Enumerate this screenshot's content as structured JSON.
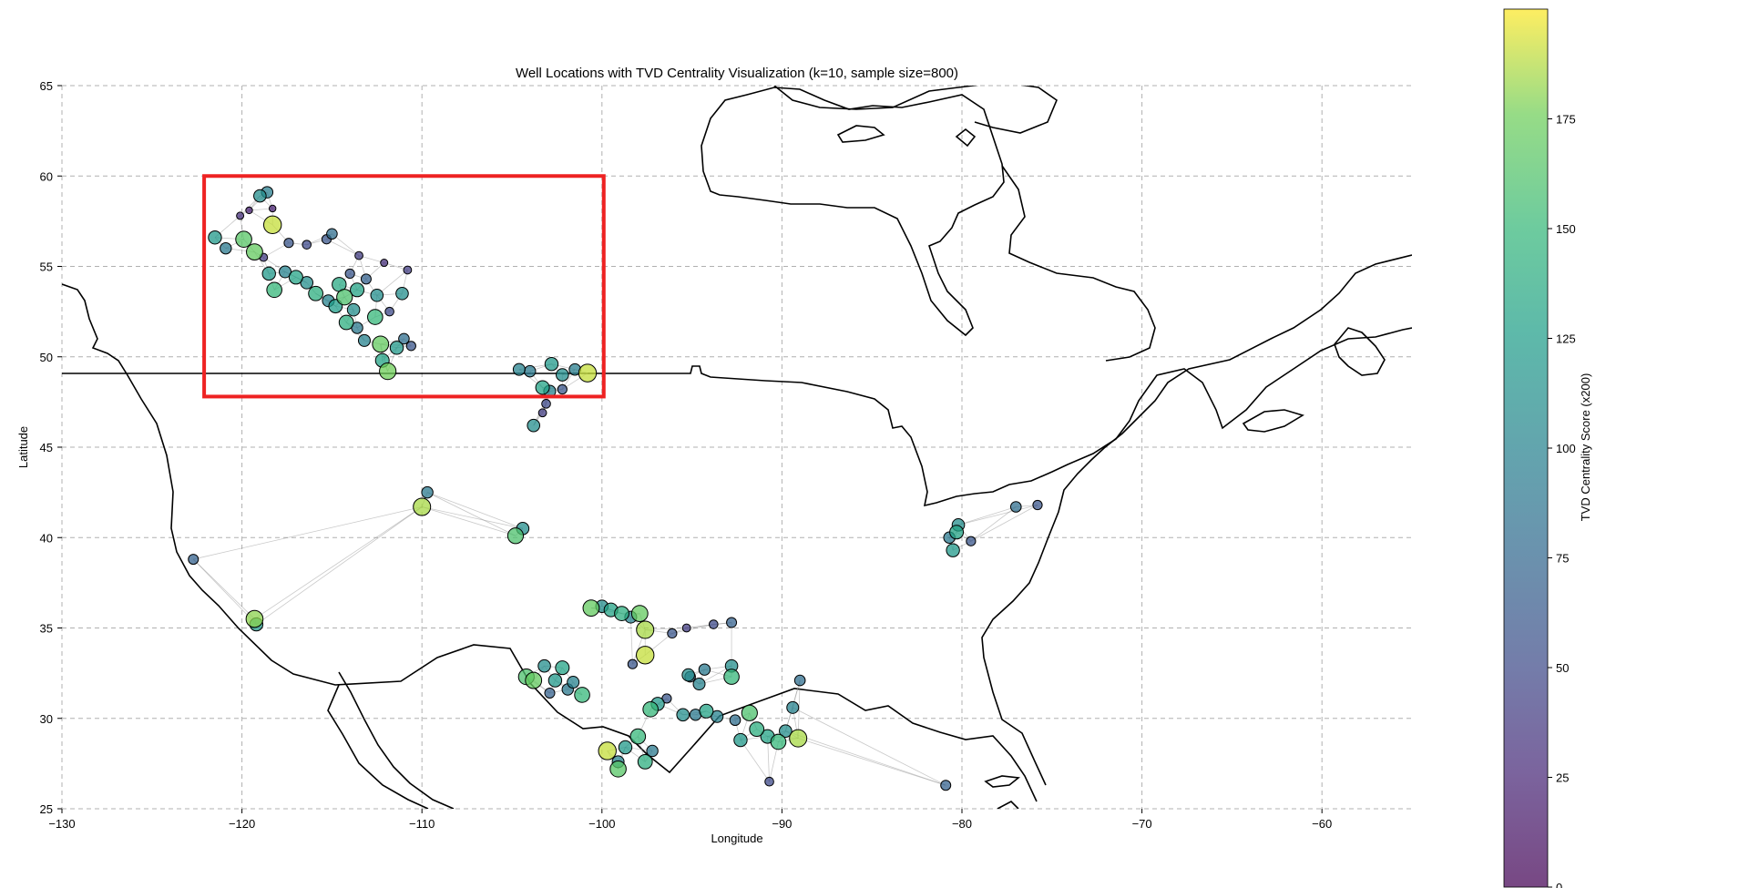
{
  "chart_data": {
    "type": "scatter",
    "title": "Well Locations with TVD Centrality Visualization (k=10, sample size=800)",
    "xlabel": "Longitude",
    "ylabel": "Latitude",
    "xlim": [
      -130,
      -55
    ],
    "ylim": [
      25,
      65
    ],
    "x_ticks": [
      -130,
      -120,
      -110,
      -100,
      -90,
      -80,
      -70,
      -60
    ],
    "x_tick_labels": [
      "−130",
      "−120",
      "−110",
      "−100",
      "−90",
      "−80",
      "−70",
      "−60"
    ],
    "y_ticks": [
      25,
      30,
      35,
      40,
      45,
      50,
      55,
      60,
      65
    ],
    "y_tick_labels": [
      "25",
      "30",
      "35",
      "40",
      "45",
      "50",
      "55",
      "60",
      "65"
    ],
    "grid": true,
    "colorbar": {
      "label": "TVD Centrality Score (x200)",
      "colormap": "viridis",
      "range": [
        0,
        200
      ],
      "ticks": [
        0,
        25,
        50,
        75,
        100,
        125,
        150,
        175
      ],
      "tick_labels": [
        "0",
        "25",
        "50",
        "75",
        "100",
        "125",
        "150",
        "175"
      ]
    },
    "highlight_box": {
      "lon_range": [
        -122.1,
        -99.9
      ],
      "lat_range": [
        47.8,
        60.0
      ],
      "color": "#ee2222"
    },
    "wells": [
      {
        "x": -120.9,
        "y": 56.0,
        "v": 90
      },
      {
        "x": -119.9,
        "y": 56.5,
        "v": 165
      },
      {
        "x": -118.3,
        "y": 57.3,
        "v": 190
      },
      {
        "x": -119.0,
        "y": 58.9,
        "v": 110
      },
      {
        "x": -118.6,
        "y": 59.1,
        "v": 95
      },
      {
        "x": -121.5,
        "y": 56.6,
        "v": 120
      },
      {
        "x": -119.3,
        "y": 55.8,
        "v": 170
      },
      {
        "x": -118.8,
        "y": 55.5,
        "v": 40
      },
      {
        "x": -118.5,
        "y": 54.6,
        "v": 120
      },
      {
        "x": -117.6,
        "y": 54.7,
        "v": 100
      },
      {
        "x": -118.2,
        "y": 53.7,
        "v": 150
      },
      {
        "x": -117.0,
        "y": 54.4,
        "v": 130
      },
      {
        "x": -116.4,
        "y": 54.1,
        "v": 110
      },
      {
        "x": -115.9,
        "y": 53.5,
        "v": 140
      },
      {
        "x": -115.2,
        "y": 53.1,
        "v": 100
      },
      {
        "x": -114.8,
        "y": 52.8,
        "v": 125
      },
      {
        "x": -114.3,
        "y": 53.3,
        "v": 160
      },
      {
        "x": -113.8,
        "y": 52.6,
        "v": 110
      },
      {
        "x": -114.2,
        "y": 51.9,
        "v": 140
      },
      {
        "x": -113.6,
        "y": 51.6,
        "v": 90
      },
      {
        "x": -112.6,
        "y": 52.2,
        "v": 150
      },
      {
        "x": -112.5,
        "y": 53.4,
        "v": 110
      },
      {
        "x": -114.6,
        "y": 54.0,
        "v": 135
      },
      {
        "x": -113.1,
        "y": 54.3,
        "v": 70
      },
      {
        "x": -116.4,
        "y": 56.2,
        "v": 50
      },
      {
        "x": -115.3,
        "y": 56.5,
        "v": 60
      },
      {
        "x": -115.0,
        "y": 56.8,
        "v": 80
      },
      {
        "x": -113.5,
        "y": 55.6,
        "v": 40
      },
      {
        "x": -113.6,
        "y": 53.7,
        "v": 130
      },
      {
        "x": -114.0,
        "y": 54.6,
        "v": 60
      },
      {
        "x": -113.2,
        "y": 50.9,
        "v": 100
      },
      {
        "x": -112.3,
        "y": 50.7,
        "v": 170
      },
      {
        "x": -111.4,
        "y": 50.5,
        "v": 120
      },
      {
        "x": -111.0,
        "y": 51.0,
        "v": 80
      },
      {
        "x": -112.2,
        "y": 49.8,
        "v": 130
      },
      {
        "x": -111.9,
        "y": 49.2,
        "v": 175
      },
      {
        "x": -110.6,
        "y": 50.6,
        "v": 60
      },
      {
        "x": -111.8,
        "y": 52.5,
        "v": 50
      },
      {
        "x": -112.1,
        "y": 55.2,
        "v": 30
      },
      {
        "x": -111.1,
        "y": 53.5,
        "v": 110
      },
      {
        "x": -110.8,
        "y": 54.8,
        "v": 40
      },
      {
        "x": -120.1,
        "y": 57.8,
        "v": 30
      },
      {
        "x": -117.4,
        "y": 56.3,
        "v": 60
      },
      {
        "x": -119.6,
        "y": 58.1,
        "v": 20
      },
      {
        "x": -118.3,
        "y": 58.2,
        "v": 20
      },
      {
        "x": -104.6,
        "y": 49.3,
        "v": 100
      },
      {
        "x": -104.0,
        "y": 49.2,
        "v": 90
      },
      {
        "x": -102.8,
        "y": 49.6,
        "v": 120
      },
      {
        "x": -102.2,
        "y": 49.0,
        "v": 110
      },
      {
        "x": -101.5,
        "y": 49.3,
        "v": 95
      },
      {
        "x": -100.8,
        "y": 49.1,
        "v": 190
      },
      {
        "x": -103.3,
        "y": 48.3,
        "v": 130
      },
      {
        "x": -102.9,
        "y": 48.1,
        "v": 100
      },
      {
        "x": -102.2,
        "y": 48.2,
        "v": 60
      },
      {
        "x": -103.1,
        "y": 47.4,
        "v": 50
      },
      {
        "x": -103.3,
        "y": 46.9,
        "v": 40
      },
      {
        "x": -103.8,
        "y": 46.2,
        "v": 110
      },
      {
        "x": -110.0,
        "y": 41.7,
        "v": 185
      },
      {
        "x": -109.7,
        "y": 42.5,
        "v": 90
      },
      {
        "x": -104.8,
        "y": 40.1,
        "v": 160
      },
      {
        "x": -104.4,
        "y": 40.5,
        "v": 110
      },
      {
        "x": -122.7,
        "y": 38.8,
        "v": 70
      },
      {
        "x": -119.3,
        "y": 35.5,
        "v": 180
      },
      {
        "x": -119.2,
        "y": 35.2,
        "v": 120
      },
      {
        "x": -100.6,
        "y": 36.1,
        "v": 170
      },
      {
        "x": -100.0,
        "y": 36.2,
        "v": 110
      },
      {
        "x": -99.5,
        "y": 36.0,
        "v": 130
      },
      {
        "x": -98.9,
        "y": 35.8,
        "v": 140
      },
      {
        "x": -98.4,
        "y": 35.6,
        "v": 100
      },
      {
        "x": -97.9,
        "y": 35.8,
        "v": 170
      },
      {
        "x": -97.6,
        "y": 34.9,
        "v": 185
      },
      {
        "x": -97.6,
        "y": 33.5,
        "v": 190
      },
      {
        "x": -96.1,
        "y": 34.7,
        "v": 60
      },
      {
        "x": -95.3,
        "y": 35.0,
        "v": 40
      },
      {
        "x": -93.8,
        "y": 35.2,
        "v": 50
      },
      {
        "x": -92.8,
        "y": 35.3,
        "v": 70
      },
      {
        "x": -104.2,
        "y": 32.3,
        "v": 160
      },
      {
        "x": -103.8,
        "y": 32.1,
        "v": 170
      },
      {
        "x": -103.2,
        "y": 32.9,
        "v": 110
      },
      {
        "x": -102.6,
        "y": 32.1,
        "v": 120
      },
      {
        "x": -102.2,
        "y": 32.8,
        "v": 130
      },
      {
        "x": -101.9,
        "y": 31.6,
        "v": 90
      },
      {
        "x": -101.1,
        "y": 31.3,
        "v": 150
      },
      {
        "x": -102.9,
        "y": 31.4,
        "v": 70
      },
      {
        "x": -101.6,
        "y": 32.0,
        "v": 100
      },
      {
        "x": -96.4,
        "y": 31.1,
        "v": 60
      },
      {
        "x": -95.1,
        "y": 32.3,
        "v": 80
      },
      {
        "x": -94.6,
        "y": 31.9,
        "v": 100
      },
      {
        "x": -94.3,
        "y": 32.7,
        "v": 90
      },
      {
        "x": -92.8,
        "y": 32.9,
        "v": 110
      },
      {
        "x": -92.8,
        "y": 32.3,
        "v": 150
      },
      {
        "x": -97.3,
        "y": 30.5,
        "v": 150
      },
      {
        "x": -96.9,
        "y": 30.8,
        "v": 120
      },
      {
        "x": -95.5,
        "y": 30.2,
        "v": 110
      },
      {
        "x": -94.8,
        "y": 30.2,
        "v": 90
      },
      {
        "x": -94.2,
        "y": 30.4,
        "v": 130
      },
      {
        "x": -93.6,
        "y": 30.1,
        "v": 100
      },
      {
        "x": -92.6,
        "y": 29.9,
        "v": 80
      },
      {
        "x": -92.3,
        "y": 28.8,
        "v": 120
      },
      {
        "x": -91.8,
        "y": 30.3,
        "v": 160
      },
      {
        "x": -91.4,
        "y": 29.4,
        "v": 140
      },
      {
        "x": -90.8,
        "y": 29.0,
        "v": 130
      },
      {
        "x": -90.2,
        "y": 28.7,
        "v": 150
      },
      {
        "x": -89.8,
        "y": 29.3,
        "v": 110
      },
      {
        "x": -89.1,
        "y": 28.9,
        "v": 185
      },
      {
        "x": -89.4,
        "y": 30.6,
        "v": 100
      },
      {
        "x": -89.0,
        "y": 32.1,
        "v": 80
      },
      {
        "x": -90.7,
        "y": 26.5,
        "v": 50
      },
      {
        "x": -98.0,
        "y": 29.0,
        "v": 150
      },
      {
        "x": -98.7,
        "y": 28.4,
        "v": 120
      },
      {
        "x": -99.7,
        "y": 28.2,
        "v": 190
      },
      {
        "x": -99.1,
        "y": 27.6,
        "v": 100
      },
      {
        "x": -99.1,
        "y": 27.2,
        "v": 165
      },
      {
        "x": -97.6,
        "y": 27.6,
        "v": 140
      },
      {
        "x": -97.2,
        "y": 28.2,
        "v": 90
      },
      {
        "x": -95.2,
        "y": 32.4,
        "v": 110
      },
      {
        "x": -98.3,
        "y": 33.0,
        "v": 60
      },
      {
        "x": -80.3,
        "y": 40.3,
        "v": 130
      },
      {
        "x": -80.2,
        "y": 40.7,
        "v": 110
      },
      {
        "x": -80.5,
        "y": 39.3,
        "v": 120
      },
      {
        "x": -80.7,
        "y": 40.0,
        "v": 90
      },
      {
        "x": -79.5,
        "y": 39.8,
        "v": 60
      },
      {
        "x": -77.0,
        "y": 41.7,
        "v": 80
      },
      {
        "x": -75.8,
        "y": 41.8,
        "v": 60
      },
      {
        "x": -80.9,
        "y": 26.3,
        "v": 70
      }
    ]
  }
}
